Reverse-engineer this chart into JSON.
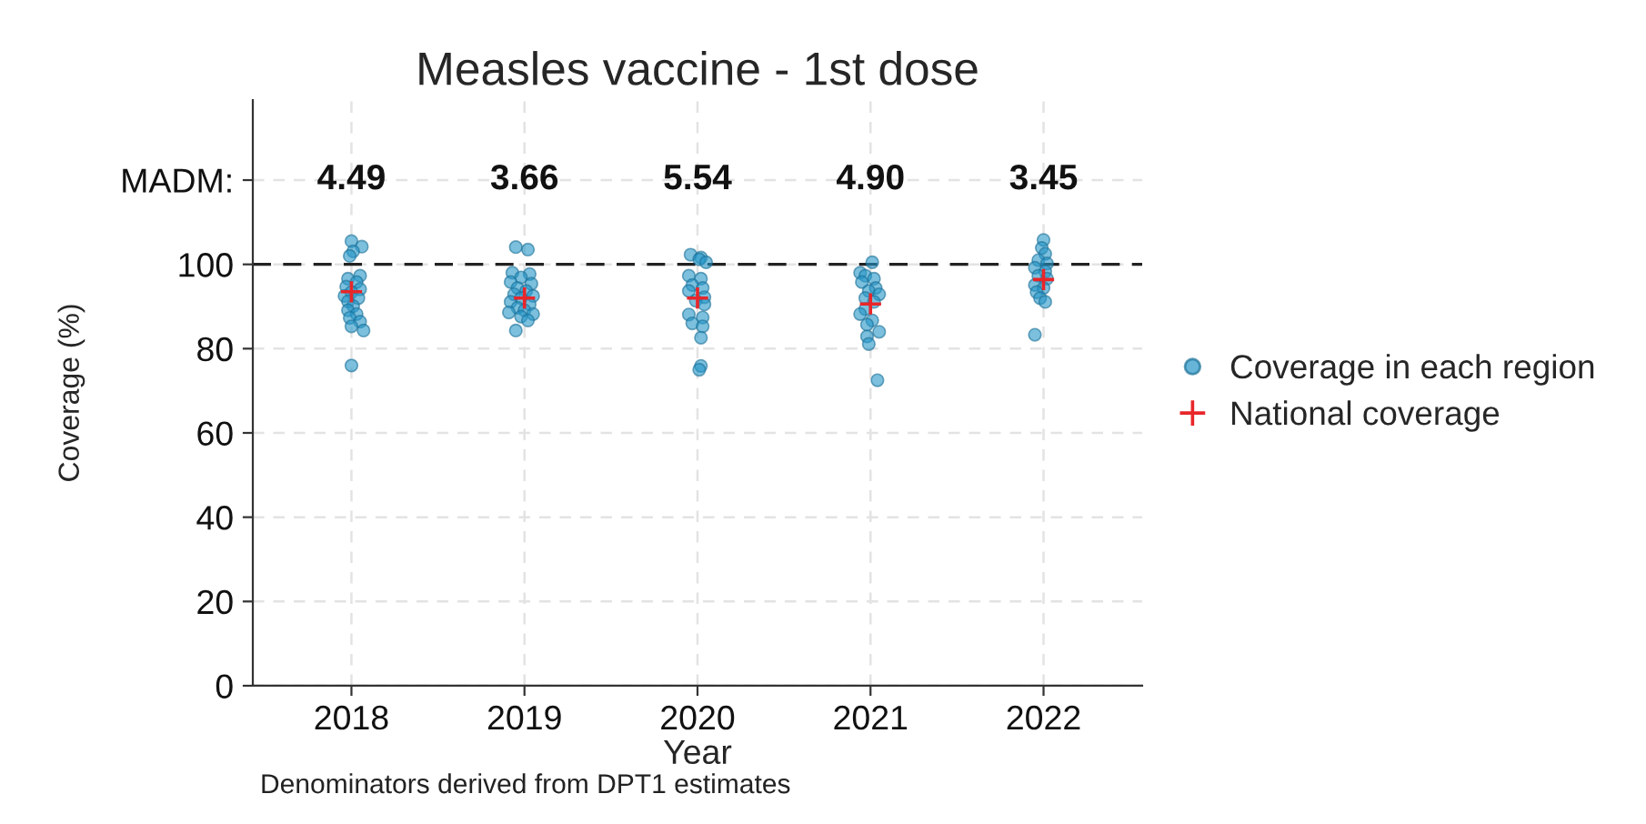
{
  "chart_data": {
    "type": "scatter",
    "title": "Measles vaccine - 1st dose",
    "xlabel": "Year",
    "ylabel": "Coverage (%)",
    "xlim": [
      2017.43,
      2022.57
    ],
    "xticks": [
      2018,
      2019,
      2020,
      2021,
      2022
    ],
    "ylim": [
      0,
      139
    ],
    "yticks": [
      0,
      20,
      40,
      60,
      80,
      100,
      {
        "value": 120,
        "label": "MADM:"
      }
    ],
    "grid": true,
    "legend": "right",
    "ref_lines": [
      {
        "axis": "y",
        "value": 100,
        "color": "#222222",
        "line_style": "dashed"
      }
    ],
    "series": [
      {
        "name": "Coverage in each region",
        "marker": "circle",
        "color": "#2596c8",
        "x": [
          2018.0,
          2018.06,
          2018.01,
          2017.99,
          2018.05,
          2017.98,
          2018.03,
          2017.97,
          2018.05,
          2018.0,
          2017.96,
          2018.04,
          2017.98,
          2018.01,
          2017.98,
          2018.03,
          2017.99,
          2018.05,
          2018.0,
          2018.07,
          2018.0,
          2018.95,
          2019.02,
          2018.93,
          2019.03,
          2018.98,
          2018.92,
          2019.04,
          2018.96,
          2019.01,
          2018.94,
          2019.05,
          2018.98,
          2018.92,
          2019.03,
          2018.96,
          2019.0,
          2018.91,
          2019.05,
          2018.98,
          2019.02,
          2018.95,
          2019.96,
          2020.02,
          2020.01,
          2020.05,
          2019.95,
          2020.02,
          2019.97,
          2020.03,
          2019.95,
          2020.04,
          2019.99,
          2020.04,
          2019.95,
          2020.03,
          2019.97,
          2020.03,
          2020.02,
          2020.02,
          2020.01,
          2021.01,
          2020.94,
          2020.97,
          2021.02,
          2020.95,
          2021.03,
          2020.99,
          2021.05,
          2020.97,
          2021.02,
          2020.97,
          2020.94,
          2021.01,
          2020.98,
          2021.05,
          2020.98,
          2020.99,
          2021.04,
          2022.0,
          2021.99,
          2022.01,
          2021.97,
          2022.02,
          2021.95,
          2022.01,
          2021.97,
          2022.02,
          2021.95,
          2022.0,
          2021.96,
          2021.98,
          2022.01,
          2021.95
        ],
        "values": [
          105.5,
          104.2,
          103.1,
          102.0,
          97.3,
          96.6,
          95.8,
          94.7,
          94.1,
          93.4,
          92.5,
          92.0,
          91.2,
          90.1,
          89.1,
          88.2,
          87.3,
          86.4,
          85.3,
          84.3,
          76.0,
          104.1,
          103.5,
          98.0,
          97.7,
          96.9,
          95.8,
          95.4,
          94.4,
          93.7,
          92.9,
          92.5,
          92.0,
          91.1,
          90.5,
          89.7,
          89.1,
          88.6,
          88.2,
          87.6,
          86.7,
          84.3,
          102.3,
          101.6,
          101.2,
          100.5,
          97.3,
          96.6,
          95.1,
          94.4,
          93.7,
          92.2,
          91.4,
          90.5,
          88.1,
          87.4,
          86.0,
          85.3,
          82.6,
          75.9,
          75.0,
          100.5,
          98.0,
          97.3,
          96.6,
          95.8,
          94.4,
          93.7,
          92.9,
          92.0,
          91.1,
          89.4,
          88.2,
          86.7,
          85.7,
          84.0,
          82.9,
          81.1,
          72.5,
          105.8,
          103.9,
          102.5,
          101.0,
          100.2,
          99.2,
          98.3,
          97.3,
          96.6,
          95.1,
          94.4,
          93.4,
          92.0,
          91.1,
          83.3
        ]
      },
      {
        "name": "National coverage",
        "marker": "cross",
        "color": "#e8262a",
        "x": [
          2018,
          2019,
          2020,
          2021,
          2022
        ],
        "values": [
          93.5,
          92.0,
          92.0,
          90.6,
          96.4
        ]
      }
    ],
    "annotations": [
      "4.49",
      "3.66",
      "5.54",
      "4.90",
      "3.45",
      "Denominators derived from DPT1 estimates"
    ]
  }
}
